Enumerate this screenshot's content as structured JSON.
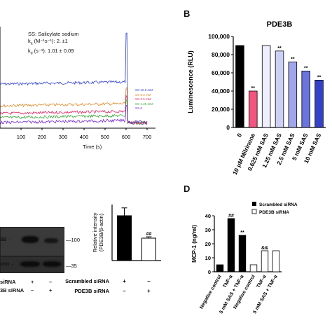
{
  "panel_labels": {
    "B": "B",
    "D": "D"
  },
  "panelA": {
    "legend": {
      "line1": "SS: Salicylate sodium",
      "line2": "k",
      "line2_sub": "a",
      "line2_rest": " (M⁻¹s⁻¹): 2. ±1",
      "line3": "k",
      "line3_sub": "d",
      "line3_rest": " (s⁻¹): 1.01 ± 0.09"
    },
    "series_labels": [
      "SS-10.0 mM",
      "SS-5.0 mM",
      "SS-2.5 mM",
      "SS-1.25 mM",
      "SS-0"
    ],
    "series_colors": [
      "#2e3fd6",
      "#e08a2a",
      "#e0245e",
      "#3aa83a",
      "#7a2ad6"
    ],
    "xlabel": "Time (s)",
    "xticks": [
      "100",
      "200",
      "300",
      "400",
      "500",
      "600",
      "700"
    ]
  },
  "chart_data": [
    {
      "type": "bar",
      "title": "PDE3B",
      "ylabel": "Luminescence (RLU)",
      "categories": [
        "0",
        "10 μM Milrinone",
        "0.625 mM SAS",
        "1.25 mM SAS",
        "2.5 mM SAS",
        "5 mM SAS",
        "10 mM SAS"
      ],
      "values": [
        90000,
        40000,
        90000,
        84000,
        72000,
        62000,
        52000
      ],
      "bar_colors": [
        "#000000",
        "#f2557d",
        "#eeeeff",
        "#cdd0f5",
        "#9fa6ec",
        "#6c75dd",
        "#3340c9"
      ],
      "annotations": [
        "",
        "**",
        "",
        "**",
        "**",
        "**",
        "**"
      ],
      "ylim": [
        0,
        100000
      ],
      "yticks": [
        "0",
        "20,000",
        "40,000",
        "60,000",
        "80,000",
        "100,000"
      ]
    },
    {
      "type": "bar",
      "ylabel": "Relative intensity\n(PDE3B/β-actin)",
      "categories": [
        "Scrambled siRNA",
        "PDE3B siRNA"
      ],
      "values": [
        2.0,
        1.0
      ],
      "bar_colors": [
        "#000000",
        "#ffffff"
      ],
      "annotations": [
        "",
        "##"
      ],
      "row_labels": [
        "Scrambled siRNA",
        "PDE3B siRNA"
      ],
      "signs": [
        [
          "+",
          "–"
        ],
        [
          "–",
          "+"
        ]
      ]
    },
    {
      "type": "bar",
      "ylabel": "MCP-1 (ng/ml)",
      "legend": [
        "Scrambled siRNA",
        "PDE3B siRNA"
      ],
      "categories": [
        "Negative control",
        "TNF-α",
        "5 mM SAS + TNF-α",
        "Negative control",
        "TNF-α",
        "5 mM SAS + TNF-α"
      ],
      "values": [
        5,
        38,
        26,
        5,
        15,
        15
      ],
      "bar_colors": [
        "#000000",
        "#000000",
        "#000000",
        "#ffffff",
        "#ffffff",
        "#ffffff"
      ],
      "annotations": [
        "",
        "##",
        "**",
        "",
        "&&",
        ""
      ],
      "ylim": [
        0,
        40
      ],
      "yticks": [
        "0",
        "10",
        "20",
        "30",
        "40"
      ]
    }
  ],
  "blot": {
    "marker_top": "100",
    "marker_bottom": "35",
    "row_top": "3B→",
    "row_bottom": "ctin→",
    "row_labels": [
      "siRNA",
      "3B siRNA"
    ],
    "signs": [
      [
        "+",
        "–"
      ],
      [
        "–",
        "+"
      ]
    ]
  }
}
